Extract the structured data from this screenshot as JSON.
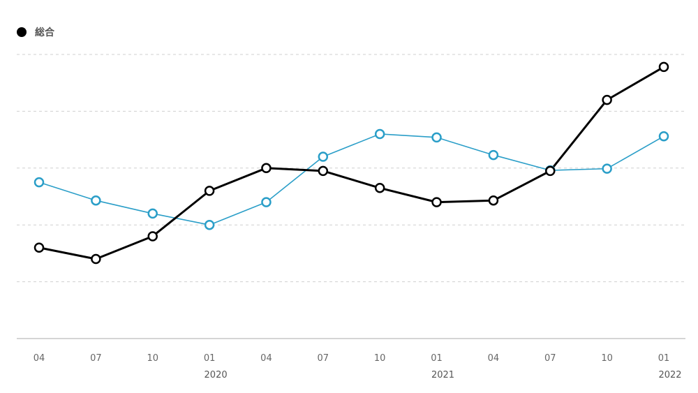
{
  "legend": {
    "label": "総合",
    "color": "#000000"
  },
  "chart_data": {
    "type": "line",
    "x_tick_labels": [
      "04",
      "07",
      "10",
      "01",
      "04",
      "07",
      "10",
      "01",
      "04",
      "07",
      "10",
      "01"
    ],
    "year_labels": [
      {
        "index": 3,
        "label": "2020"
      },
      {
        "index": 7,
        "label": "2021"
      },
      {
        "index": 11,
        "label": "2022"
      }
    ],
    "ylim": [
      0,
      5
    ],
    "grid": true,
    "legend_position": "top-left",
    "series": [
      {
        "name": "総合",
        "color": "#000000",
        "values": [
          1.6,
          1.4,
          1.8,
          2.6,
          3.0,
          2.95,
          2.65,
          2.4,
          2.43,
          2.95,
          4.2,
          4.78
        ]
      },
      {
        "color": "#2a9ec8",
        "values": [
          2.75,
          2.43,
          2.2,
          2.0,
          2.4,
          3.2,
          3.6,
          3.54,
          3.23,
          2.96,
          2.99,
          3.56
        ]
      }
    ]
  }
}
